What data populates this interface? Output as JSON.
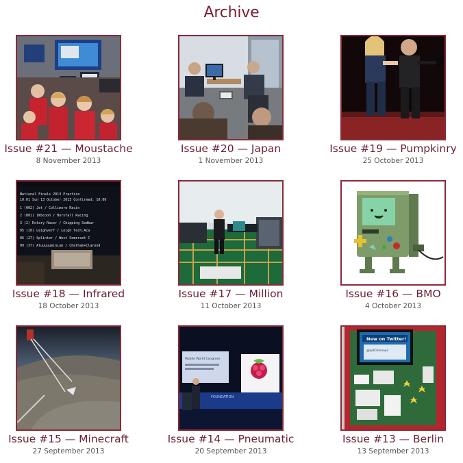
{
  "page": {
    "title": "Archive"
  },
  "issues": [
    {
      "title": "Issue #21 — Moustache",
      "date": "8 November 2013",
      "thumb": "classroom-children-screens-photo"
    },
    {
      "title": "Issue #20 — Japan",
      "date": "1 November 2013",
      "thumb": "office-meeting-monitor-photo"
    },
    {
      "title": "Issue #19 — Pumpkinry",
      "date": "25 October 2013",
      "thumb": "stage-performers-photo"
    },
    {
      "title": "Issue #18 — Infrared",
      "date": "18 October 2013",
      "thumb": "terminal-screen-photo"
    },
    {
      "title": "Issue #17 — Million",
      "date": "11 October 2013",
      "thumb": "speaker-on-circuit-board-stage-photo"
    },
    {
      "title": "Issue #16 — BMO",
      "date": "4 October 2013",
      "thumb": "bmo-robot-model-photo"
    },
    {
      "title": "Issue #15 — Minecraft",
      "date": "27 September 2013",
      "thumb": "high-altitude-balloon-earth-photo"
    },
    {
      "title": "Issue #14 — Pneumatic",
      "date": "20 September 2013",
      "thumb": "conference-raspberry-pi-slide-photo"
    },
    {
      "title": "Issue #13 — Berlin",
      "date": "13 September 2013",
      "thumb": "classroom-board-twitter-display-photo"
    }
  ],
  "terminal_lines": [
    "National Finals 2013 Practice",
    "10:01 Sun 13 October 2013 Confirmed: 10:00",
    "1 (002) Jet / Collimore Racin",
    "2 (001) 1WScooh / Horsfall Racing",
    "3 (2) Rotary Racer / Chipping Sodbur",
    "05 (10) Leighverf / Leigh Tech.Aca",
    "06 (27) Splinter / West Somerset C",
    "09 (37) Aluuuuuminium / Chetham+Clarend"
  ],
  "slide_text": {
    "header": "Mobile World Congress",
    "logo_text": "FOUNDATION",
    "twitter_banner": "New on Twitter!",
    "twitter_handle": "@lydChinneys"
  }
}
